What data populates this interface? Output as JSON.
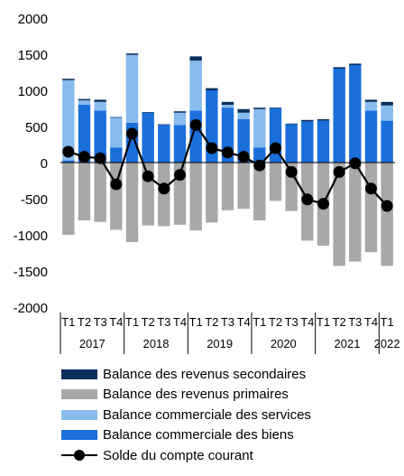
{
  "chart_data": {
    "type": "bar",
    "stacked": true,
    "quarters": [
      "T1",
      "T2",
      "T3",
      "T4",
      "T1",
      "T2",
      "T3",
      "T4",
      "T1",
      "T2",
      "T3",
      "T4",
      "T1",
      "T2",
      "T3",
      "T4",
      "T1",
      "T2",
      "T3",
      "T4",
      "T1"
    ],
    "years": [
      {
        "label": "2017",
        "start": 0,
        "end": 3
      },
      {
        "label": "2018",
        "start": 4,
        "end": 7
      },
      {
        "label": "2019",
        "start": 8,
        "end": 11
      },
      {
        "label": "2020",
        "start": 12,
        "end": 15
      },
      {
        "label": "2021",
        "start": 16,
        "end": 19
      },
      {
        "label": "2022",
        "start": 20,
        "end": 20
      }
    ],
    "ylim": [
      -2000,
      2000
    ],
    "yticks": [
      "2000",
      "1500",
      "1000",
      "500",
      "0",
      "-500",
      "-1000",
      "-1500",
      "-2000"
    ],
    "grid": false,
    "legend_position": "bottom",
    "series": [
      {
        "name": "Balance des revenus secondaires",
        "color": "#0a2f5c",
        "values": [
          20,
          20,
          30,
          10,
          20,
          10,
          10,
          20,
          60,
          30,
          40,
          50,
          20,
          10,
          10,
          20,
          20,
          20,
          20,
          30,
          50
        ]
      },
      {
        "name": "Balance des revenus primaires",
        "color": "#a8a8a8",
        "values": [
          -1000,
          -800,
          -820,
          -930,
          -1100,
          -870,
          -880,
          -860,
          -940,
          -830,
          -660,
          -640,
          -800,
          -530,
          -670,
          -1080,
          -1150,
          -1430,
          -1370,
          -1240,
          -1430
        ]
      },
      {
        "name": "Balance commerciale des services",
        "color": "#88bbee",
        "values": [
          1110,
          60,
          120,
          410,
          940,
          0,
          0,
          170,
          690,
          0,
          40,
          90,
          530,
          0,
          0,
          0,
          0,
          0,
          0,
          120,
          210
        ]
      },
      {
        "name": "Balance commerciale des biens",
        "color": "#1a6fdb",
        "values": [
          30,
          800,
          720,
          210,
          550,
          690,
          520,
          520,
          720,
          1000,
          760,
          600,
          210,
          750,
          530,
          570,
          580,
          1300,
          1350,
          720,
          580
        ]
      }
    ],
    "line": {
      "name": "Solde du compte courant",
      "color": "#000000",
      "values": [
        150,
        80,
        60,
        -300,
        400,
        -190,
        -360,
        -170,
        520,
        200,
        140,
        80,
        -40,
        200,
        -130,
        -510,
        -570,
        -130,
        -10,
        -360,
        -600
      ]
    }
  }
}
